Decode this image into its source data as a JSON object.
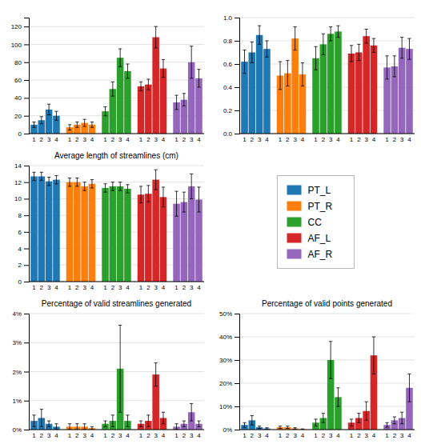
{
  "chart_data": [
    {
      "type": "bar",
      "categories": [
        "1",
        "2",
        "3",
        "4"
      ],
      "series": [
        {
          "name": "PT_L",
          "values": [
            10,
            15,
            27,
            20
          ],
          "errors": [
            3,
            4,
            6,
            5
          ]
        },
        {
          "name": "PT_R",
          "values": [
            7,
            10,
            12,
            10
          ],
          "errors": [
            3,
            3,
            4,
            3
          ]
        },
        {
          "name": "CC",
          "values": [
            25,
            50,
            85,
            70
          ],
          "errors": [
            5,
            8,
            10,
            8
          ]
        },
        {
          "name": "AF_L",
          "values": [
            53,
            55,
            108,
            73
          ],
          "errors": [
            5,
            6,
            12,
            10
          ]
        },
        {
          "name": "AF_R",
          "values": [
            35,
            38,
            80,
            62
          ],
          "errors": [
            8,
            7,
            18,
            10
          ]
        }
      ],
      "ylim": [
        0,
        130
      ],
      "yticks": [
        0,
        20,
        40,
        60,
        80,
        100,
        120
      ],
      "grid": true
    },
    {
      "type": "bar",
      "categories": [
        "1",
        "2",
        "3",
        "4"
      ],
      "series": [
        {
          "name": "PT_L",
          "values": [
            0.62,
            0.7,
            0.85,
            0.73
          ],
          "errors": [
            0.1,
            0.09,
            0.08,
            0.07
          ]
        },
        {
          "name": "PT_R",
          "values": [
            0.5,
            0.52,
            0.82,
            0.51
          ],
          "errors": [
            0.12,
            0.11,
            0.1,
            0.1
          ]
        },
        {
          "name": "CC",
          "values": [
            0.65,
            0.77,
            0.86,
            0.88
          ],
          "errors": [
            0.1,
            0.09,
            0.06,
            0.05
          ]
        },
        {
          "name": "AF_L",
          "values": [
            0.69,
            0.7,
            0.84,
            0.76
          ],
          "errors": [
            0.07,
            0.07,
            0.06,
            0.06
          ]
        },
        {
          "name": "AF_R",
          "values": [
            0.57,
            0.58,
            0.74,
            0.73
          ],
          "errors": [
            0.1,
            0.09,
            0.09,
            0.09
          ]
        }
      ],
      "ylim": [
        0.0,
        1.0
      ],
      "yticks": [
        {
          "value": 0.0,
          "label": "0.0"
        },
        0.2,
        0.4,
        0.6,
        0.8,
        {
          "value": 1.0,
          "label": "1.0"
        }
      ],
      "grid": true
    },
    {
      "type": "bar",
      "title": "Average length of streamlines (cm)",
      "categories": [
        "1",
        "2",
        "3",
        "4"
      ],
      "series": [
        {
          "name": "PT_L",
          "values": [
            12.7,
            12.7,
            12.1,
            12.3
          ],
          "errors": [
            0.5,
            0.5,
            0.5,
            0.5
          ]
        },
        {
          "name": "PT_R",
          "values": [
            12.0,
            12.0,
            11.5,
            11.8
          ],
          "errors": [
            0.5,
            0.5,
            0.5,
            0.5
          ]
        },
        {
          "name": "CC",
          "values": [
            11.3,
            11.5,
            11.5,
            11.2
          ],
          "errors": [
            0.5,
            0.5,
            0.5,
            0.5
          ]
        },
        {
          "name": "AF_L",
          "values": [
            10.5,
            10.6,
            12.3,
            10.2
          ],
          "errors": [
            1.0,
            1.0,
            1.2,
            1.2
          ]
        },
        {
          "name": "AF_R",
          "values": [
            9.4,
            9.6,
            11.5,
            9.9
          ],
          "errors": [
            1.5,
            1.2,
            1.5,
            1.5
          ]
        }
      ],
      "ylim": [
        0,
        14
      ],
      "yticks": [
        0,
        2,
        4,
        6,
        8,
        10,
        12,
        14
      ],
      "grid": true,
      "legend": "right"
    },
    {
      "type": "bar",
      "title": "Percentage of valid streamlines generated",
      "categories": [
        "1",
        "2",
        "3",
        "4"
      ],
      "series": [
        {
          "name": "PT_L",
          "values": [
            0.003,
            0.004,
            0.002,
            0.001
          ],
          "errors": [
            0.002,
            0.003,
            0.001,
            0.001
          ]
        },
        {
          "name": "PT_R",
          "values": [
            0.001,
            0.001,
            0.001,
            0.0005
          ],
          "errors": [
            0.001,
            0.001,
            0.001,
            0.0005
          ]
        },
        {
          "name": "CC",
          "values": [
            0.002,
            0.003,
            0.021,
            0.003
          ],
          "errors": [
            0.001,
            0.002,
            0.015,
            0.002
          ]
        },
        {
          "name": "AF_L",
          "values": [
            0.002,
            0.003,
            0.019,
            0.004
          ],
          "errors": [
            0.001,
            0.002,
            0.004,
            0.002
          ]
        },
        {
          "name": "AF_R",
          "values": [
            0.001,
            0.002,
            0.006,
            0.002
          ],
          "errors": [
            0.001,
            0.001,
            0.003,
            0.001
          ]
        }
      ],
      "ylim": [
        0,
        0.04
      ],
      "yticks": [
        {
          "value": 0.0,
          "label": "0%"
        },
        {
          "value": 0.01,
          "label": "1%"
        },
        {
          "value": 0.02,
          "label": "2%"
        },
        {
          "value": 0.03,
          "label": "3%"
        },
        {
          "value": 0.04,
          "label": "4%"
        }
      ],
      "grid": true
    },
    {
      "type": "bar",
      "title": "Percentage of valid points generated",
      "categories": [
        "1",
        "2",
        "3",
        "4"
      ],
      "series": [
        {
          "name": "PT_L",
          "values": [
            0.02,
            0.04,
            0.01,
            0.005
          ],
          "errors": [
            0.01,
            0.02,
            0.005,
            0.003
          ]
        },
        {
          "name": "PT_R",
          "values": [
            0.01,
            0.01,
            0.005,
            0.002
          ],
          "errors": [
            0.005,
            0.005,
            0.003,
            0.001
          ]
        },
        {
          "name": "CC",
          "values": [
            0.03,
            0.05,
            0.3,
            0.14
          ],
          "errors": [
            0.015,
            0.02,
            0.08,
            0.04
          ]
        },
        {
          "name": "AF_L",
          "values": [
            0.03,
            0.05,
            0.08,
            0.32
          ],
          "errors": [
            0.015,
            0.02,
            0.04,
            0.08
          ]
        },
        {
          "name": "AF_R",
          "values": [
            0.02,
            0.04,
            0.05,
            0.18
          ],
          "errors": [
            0.01,
            0.015,
            0.025,
            0.06
          ]
        }
      ],
      "ylim": [
        0,
        0.5
      ],
      "yticks": [
        {
          "value": 0.0,
          "label": "0%"
        },
        {
          "value": 0.1,
          "label": "10%"
        },
        {
          "value": 0.2,
          "label": "20%"
        },
        {
          "value": 0.3,
          "label": "30%"
        },
        {
          "value": 0.4,
          "label": "40%"
        },
        {
          "value": 0.5,
          "label": "50%"
        }
      ],
      "grid": true
    }
  ]
}
